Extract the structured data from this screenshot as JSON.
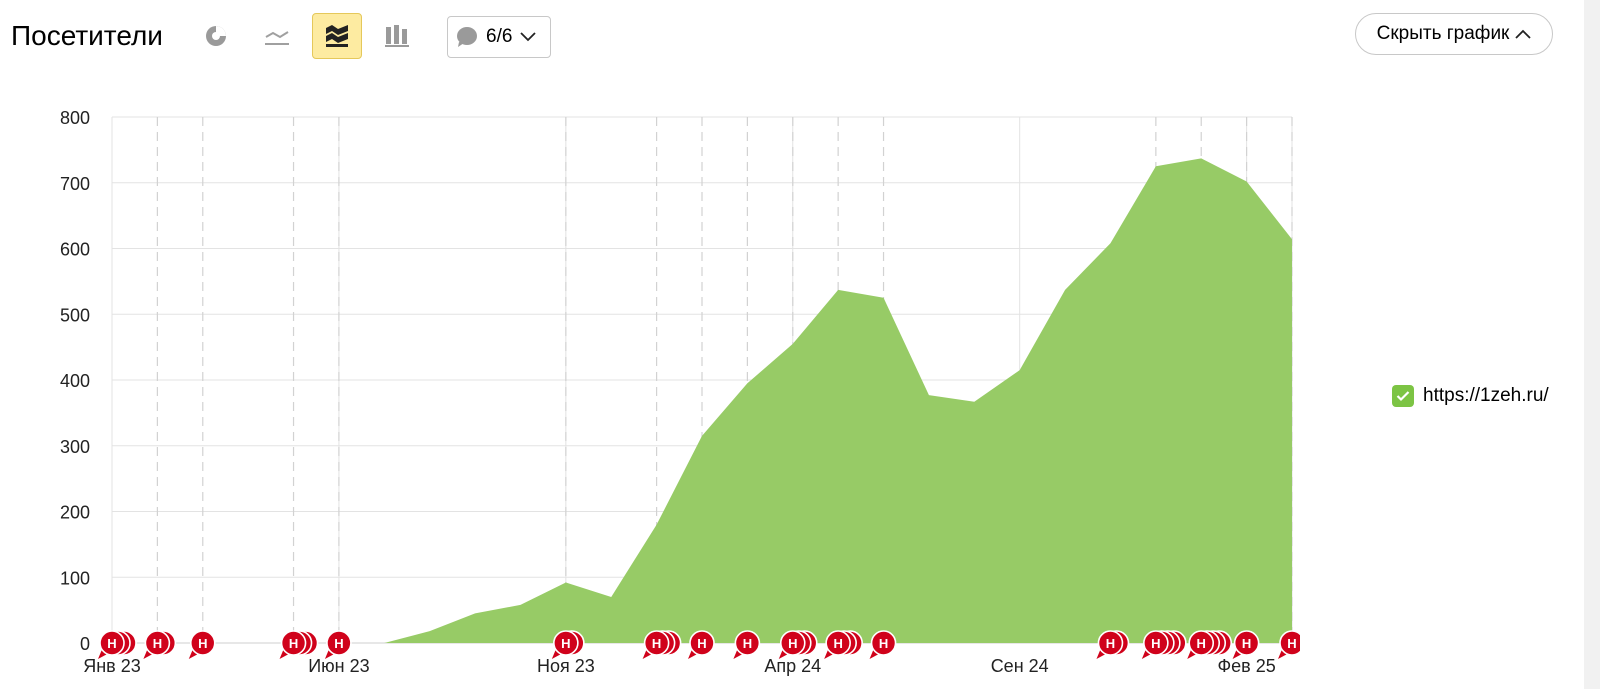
{
  "header": {
    "title": "Посетители",
    "notes_label": "6/6",
    "hide_label": "Скрыть график"
  },
  "toolbar": {
    "buttons": [
      {
        "icon": "pie-chart-icon",
        "active": false
      },
      {
        "icon": "line-chart-icon",
        "active": false
      },
      {
        "icon": "area-chart-icon",
        "active": true
      },
      {
        "icon": "bar-chart-icon",
        "active": false
      }
    ]
  },
  "colors": {
    "area": "#97cb66",
    "legend_check": "#7cc444",
    "note_marker": "#d0021b",
    "active_tool": "#fdeba1"
  },
  "chart_data": {
    "type": "area",
    "x": [
      "2023-01",
      "2023-02",
      "2023-03",
      "2023-04",
      "2023-05",
      "2023-06",
      "2023-07",
      "2023-08",
      "2023-09",
      "2023-10",
      "2023-11",
      "2023-12",
      "2024-01",
      "2024-02",
      "2024-03",
      "2024-04",
      "2024-05",
      "2024-06",
      "2024-07",
      "2024-08",
      "2024-09",
      "2024-10",
      "2024-11",
      "2024-12",
      "2025-01",
      "2025-02",
      "2025-03"
    ],
    "series": [
      {
        "name": "https://1zeh.ru/",
        "values": [
          0,
          0,
          0,
          0,
          0,
          0,
          0,
          18,
          45,
          58,
          92,
          70,
          180,
          315,
          395,
          455,
          537,
          525,
          377,
          367,
          415,
          537,
          608,
          725,
          737,
          702,
          614
        ]
      }
    ],
    "ylim": [
      0,
      800
    ],
    "yticks": [
      "0",
      "100",
      "200",
      "300",
      "400",
      "500",
      "600",
      "700",
      "800"
    ],
    "xtick_labels": [
      {
        "label": "Янв 23",
        "x": "2023-01"
      },
      {
        "label": "Июн 23",
        "x": "2023-06"
      },
      {
        "label": "Ноя 23",
        "x": "2023-11"
      },
      {
        "label": "Апр 24",
        "x": "2024-04"
      },
      {
        "label": "Сен 24",
        "x": "2024-09"
      },
      {
        "label": "Фев 25",
        "x": "2025-02"
      }
    ],
    "grid": true,
    "legend": {
      "position": "right",
      "checked": true
    },
    "notes": {
      "label": "Н",
      "lines": [
        "2023-02",
        "2023-03",
        "2023-05",
        "2023-06",
        "2023-11",
        "2024-01",
        "2024-02",
        "2024-03",
        "2024-04",
        "2024-05",
        "2024-06",
        "2024-12",
        "2025-01",
        "2025-02",
        "2025-03"
      ],
      "groups": [
        {
          "x": "2023-01",
          "count": 3
        },
        {
          "x": "2023-02",
          "count": 2
        },
        {
          "x": "2023-03",
          "count": 1
        },
        {
          "x": "2023-05",
          "count": 3
        },
        {
          "x": "2023-06",
          "count": 1
        },
        {
          "x": "2023-11",
          "count": 2
        },
        {
          "x": "2024-01",
          "count": 3
        },
        {
          "x": "2024-02",
          "count": 1
        },
        {
          "x": "2024-03",
          "count": 1
        },
        {
          "x": "2024-04",
          "count": 3
        },
        {
          "x": "2024-05",
          "count": 3
        },
        {
          "x": "2024-06",
          "count": 1
        },
        {
          "x": "2024-11",
          "count": 2
        },
        {
          "x": "2024-12",
          "count": 4
        },
        {
          "x": "2025-01",
          "count": 4
        },
        {
          "x": "2025-02",
          "count": 1
        },
        {
          "x": "2025-03",
          "count": 1
        }
      ]
    }
  }
}
